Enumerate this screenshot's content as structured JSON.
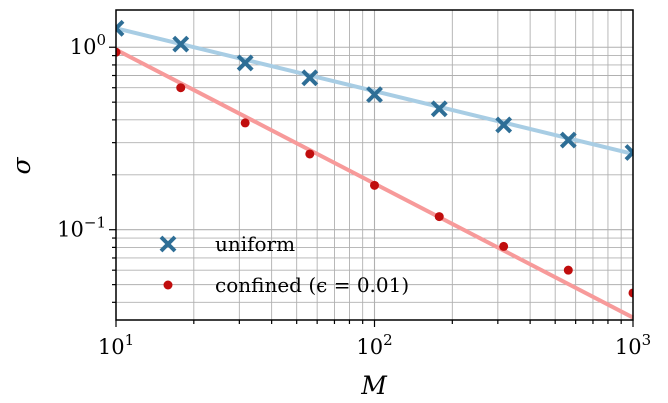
{
  "chart_data": {
    "type": "scatter",
    "xlabel": "M",
    "ylabel": "σ",
    "xscale": "log",
    "yscale": "log",
    "xlim": [
      10,
      1000
    ],
    "ylim": [
      0.032,
      1.6
    ],
    "grid": true,
    "grid_minor": true,
    "legend_position": "lower-left",
    "x_ticks": [
      {
        "value": 10,
        "base": "10",
        "exp": "1"
      },
      {
        "value": 100,
        "base": "10",
        "exp": "2"
      },
      {
        "value": 1000,
        "base": "10",
        "exp": "3"
      }
    ],
    "y_ticks": [
      {
        "value": 1,
        "base": "10",
        "exp": "0"
      },
      {
        "value": 0.1,
        "base": "10",
        "exp": "−1"
      }
    ],
    "series": [
      {
        "name": "uniform",
        "marker": "x",
        "marker_color": "#2e6e96",
        "fit_color": "#a8cde4",
        "fit": {
          "y_at_xmin": 1.27,
          "y_at_xmax": 0.26
        },
        "x": [
          10,
          17.8,
          31.6,
          56.2,
          100,
          178,
          316,
          562,
          1000
        ],
        "y": [
          1.27,
          1.04,
          0.82,
          0.68,
          0.55,
          0.46,
          0.375,
          0.31,
          0.265
        ]
      },
      {
        "name": "confined (ϵ = 0.01)",
        "marker": "dot",
        "marker_color": "#c00d0d",
        "fit_color": "#f79a9a",
        "fit": {
          "y_at_xmin": 0.97,
          "y_at_xmax": 0.033
        },
        "x": [
          10,
          17.8,
          31.6,
          56.2,
          100,
          178,
          316,
          562,
          1000
        ],
        "y": [
          0.94,
          0.6,
          0.385,
          0.26,
          0.175,
          0.118,
          0.081,
          0.06,
          0.045
        ]
      }
    ]
  }
}
